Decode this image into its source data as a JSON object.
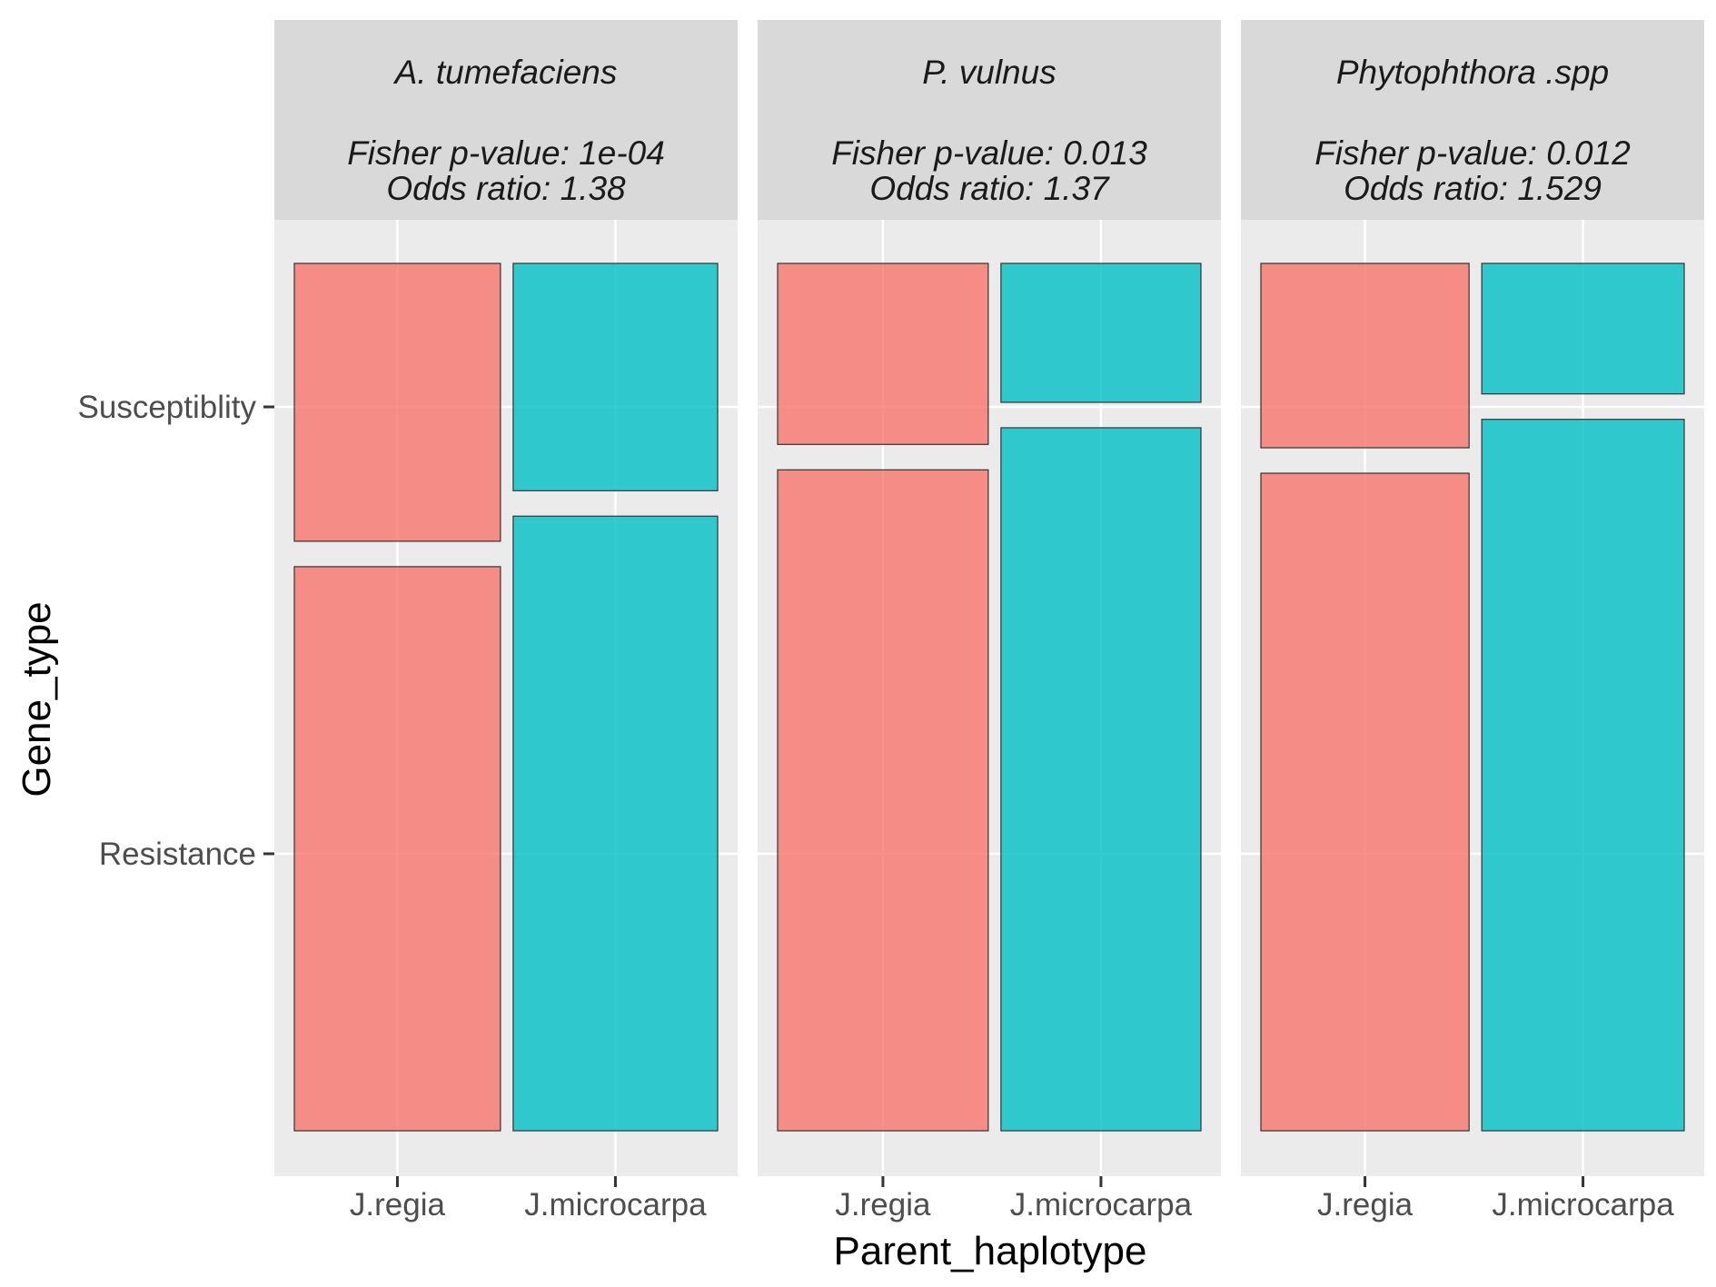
{
  "chart_data": {
    "type": "mosaic",
    "xlabel": "Parent_haplotype",
    "ylabel": "Gene_type",
    "categories": [
      "J.regia",
      "J.microcarpa"
    ],
    "levels": [
      "Resistance",
      "Susceptiblity"
    ],
    "colors": {
      "J.regia": "#F8766D",
      "J.microcarpa": "#00BFC4"
    },
    "grid": true,
    "legend": "none",
    "panels": [
      {
        "name": "A. tumefaciens",
        "stat1": "Fisher p-value: 1e-04",
        "stat2": "Odds ratio: 1.38",
        "column_share": [
          0.502,
          0.498
        ],
        "susceptibility_share": [
          0.33,
          0.27
        ]
      },
      {
        "name": "P. vulnus",
        "stat1": "Fisher p-value: 0.013",
        "stat2": "Odds ratio: 1.37",
        "column_share": [
          0.513,
          0.487
        ],
        "susceptibility_share": [
          0.215,
          0.165
        ]
      },
      {
        "name": "Phytophthora .spp",
        "stat1": "Fisher p-value: 0.012",
        "stat2": "Odds ratio: 1.529",
        "column_share": [
          0.507,
          0.493
        ],
        "susceptibility_share": [
          0.219,
          0.155
        ]
      }
    ]
  }
}
